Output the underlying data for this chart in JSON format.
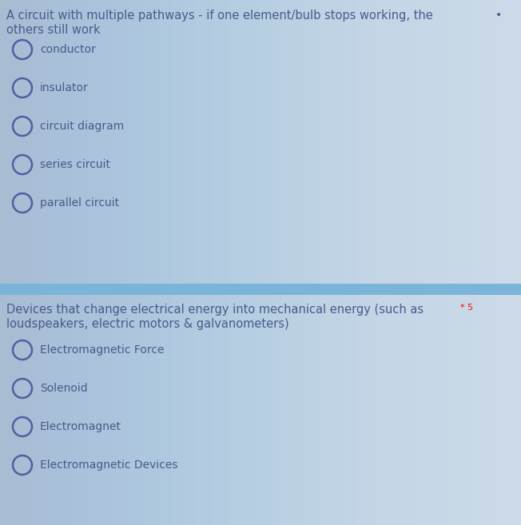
{
  "bg_color": "#c5d5e5",
  "bg_gradient_start": "#bccfe0",
  "bg_gradient_end": "#d0dde8",
  "divider_color": "#7ab4d8",
  "question1_line1": "A circuit with multiple pathways - if one element/bulb stops working, the",
  "question1_line2": "others still work",
  "question1_star": "•",
  "options1": [
    "conductor",
    "insulator",
    "circuit diagram",
    "series circuit",
    "parallel circuit"
  ],
  "question2_line1": "Devices that change electrical energy into mechanical energy (such as",
  "question2_line2": "loudspeakers, electric motors & galvanometers)",
  "question2_star": "* 5",
  "options2": [
    "Electromagnetic Force",
    "Solenoid",
    "Electromagnet",
    "Electromagnetic Devices"
  ],
  "text_color": "#4a5a8a",
  "circle_color": "#5060a0",
  "font_size_question": 10.5,
  "font_size_option": 10.0
}
